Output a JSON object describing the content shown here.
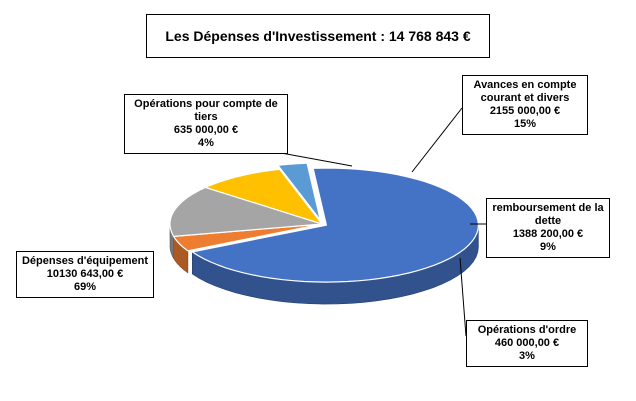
{
  "chart_data": {
    "type": "pie",
    "title": "Les Dépenses d'Investissement : 14 768 843 €",
    "slices": [
      {
        "name": "Dépenses d'équipement",
        "value": 10130643.0,
        "value_label": "10130 643,00 €",
        "percent": "69%",
        "color": "#4472c4"
      },
      {
        "name": "Opérations pour compte de tiers",
        "value": 635000.0,
        "value_label": "635 000,00 €",
        "percent": "4%",
        "color": "#ed7d31"
      },
      {
        "name": "Avances en compte courant et divers",
        "value": 2155000.0,
        "value_label": "2155 000,00 €",
        "percent": "15%",
        "color": "#a5a5a5"
      },
      {
        "name": "remboursement de la dette",
        "value": 1388200.0,
        "value_label": "1388 200,00 €",
        "percent": "9%",
        "color": "#ffc000"
      },
      {
        "name": "Opérations d'ordre",
        "value": 460000.0,
        "value_label": "460 000,00 €",
        "percent": "3%",
        "color": "#5b9bd5"
      }
    ]
  }
}
